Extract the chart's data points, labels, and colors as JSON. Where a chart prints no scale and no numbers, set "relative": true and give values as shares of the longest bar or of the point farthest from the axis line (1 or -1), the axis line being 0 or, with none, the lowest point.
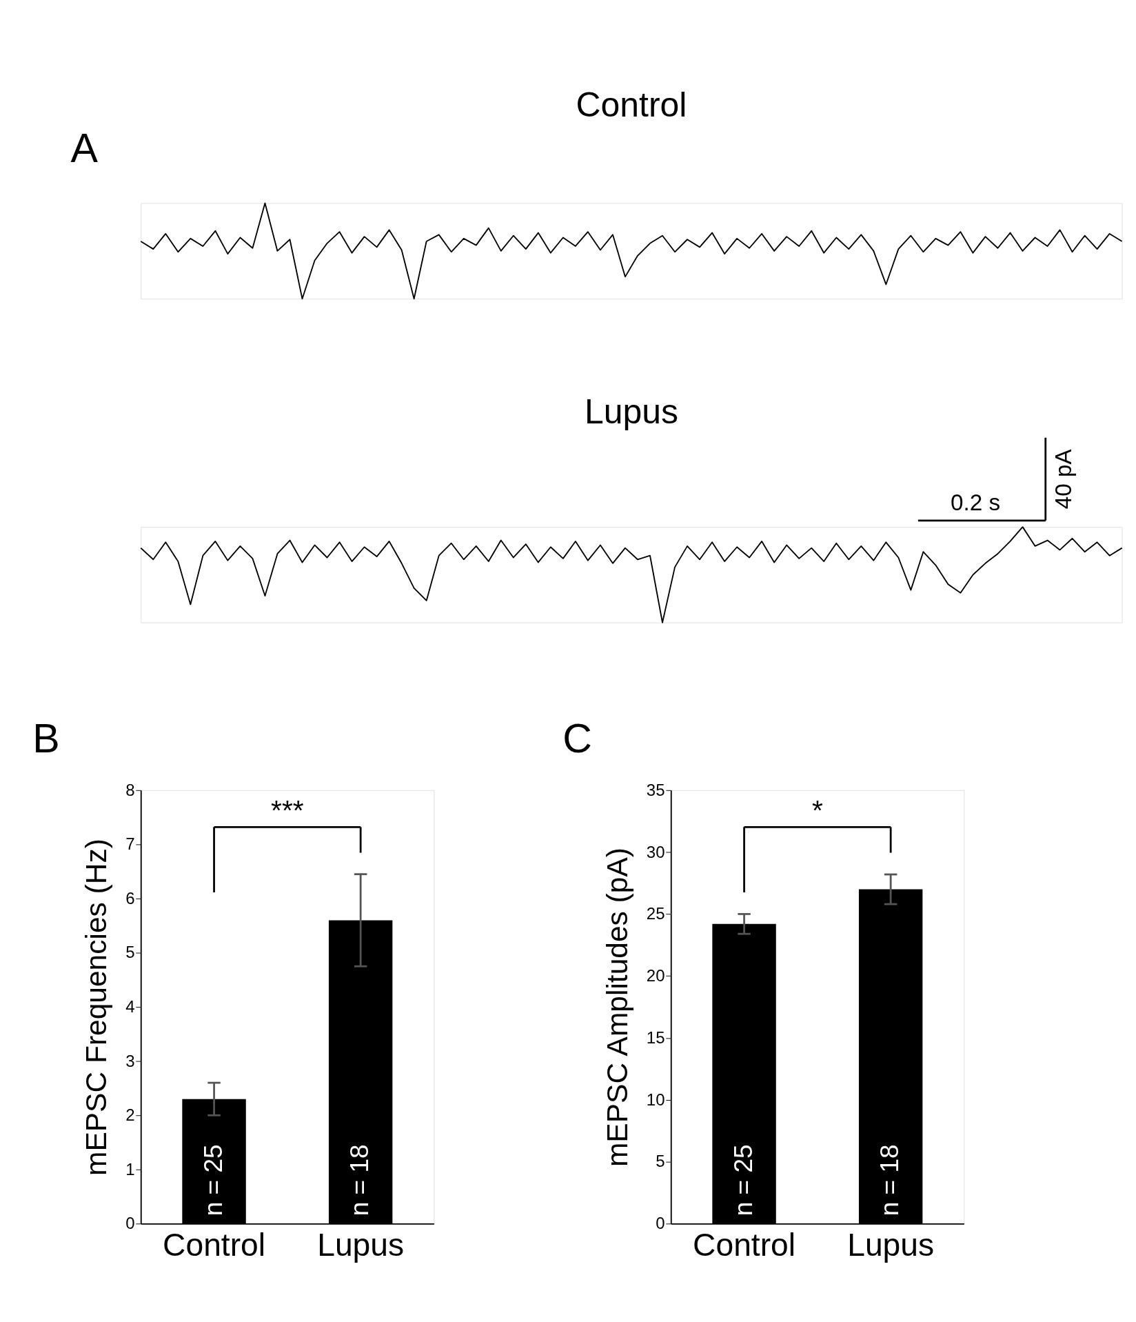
{
  "chart_data": [
    {
      "type": "line",
      "title": "Control",
      "relative": true,
      "annotations": [
        "A"
      ],
      "categories": [
        null,
        null,
        null,
        null,
        null,
        null,
        null,
        null,
        null,
        null,
        null,
        null,
        null,
        null,
        null,
        null,
        null,
        null,
        null,
        null,
        null,
        null,
        null,
        null,
        null,
        null,
        null,
        null,
        null,
        null,
        null,
        null,
        null,
        null,
        null,
        null,
        null,
        null,
        null,
        null,
        null,
        null,
        null,
        null,
        null,
        null,
        null,
        null,
        null,
        null,
        null,
        null,
        null,
        null,
        null,
        null,
        null,
        null,
        null,
        null,
        null,
        null,
        null,
        null,
        null,
        null,
        null,
        null,
        null,
        null,
        null,
        null,
        null,
        null,
        null,
        null,
        null,
        null,
        null,
        null
      ],
      "series": [
        {
          "color": "#000000",
          "values": [
            0.6,
            0.52,
            0.68,
            0.49,
            0.63,
            0.55,
            0.71,
            0.47,
            0.64,
            0.53,
            1.0,
            0.5,
            0.62,
            0.0,
            0.4,
            0.58,
            0.7,
            0.48,
            0.65,
            0.54,
            0.72,
            0.51,
            0.0,
            0.6,
            0.67,
            0.49,
            0.63,
            0.56,
            0.74,
            0.5,
            0.66,
            0.52,
            0.69,
            0.48,
            0.64,
            0.55,
            0.7,
            0.51,
            0.67,
            0.23,
            0.45,
            0.58,
            0.66,
            0.49,
            0.62,
            0.54,
            0.69,
            0.47,
            0.63,
            0.53,
            0.68,
            0.5,
            0.65,
            0.55,
            0.71,
            0.48,
            0.64,
            0.52,
            0.67,
            0.5,
            0.15,
            0.52,
            0.66,
            0.49,
            0.63,
            0.56,
            0.7,
            0.48,
            0.65,
            0.53,
            0.69,
            0.5,
            0.64,
            0.55,
            0.72,
            0.49,
            0.66,
            0.52,
            0.68,
            0.6
          ]
        }
      ]
    },
    {
      "type": "line",
      "title": "Lupus",
      "relative": true,
      "annotations": [
        "0.2 s",
        "40 pA"
      ],
      "categories": [
        null,
        null,
        null,
        null,
        null,
        null,
        null,
        null,
        null,
        null,
        null,
        null,
        null,
        null,
        null,
        null,
        null,
        null,
        null,
        null,
        null,
        null,
        null,
        null,
        null,
        null,
        null,
        null,
        null,
        null,
        null,
        null,
        null,
        null,
        null,
        null,
        null,
        null,
        null,
        null,
        null,
        null,
        null,
        null,
        null,
        null,
        null,
        null,
        null,
        null,
        null,
        null,
        null,
        null,
        null,
        null,
        null,
        null,
        null,
        null,
        null,
        null,
        null,
        null,
        null,
        null,
        null,
        null,
        null,
        null,
        null,
        null,
        null,
        null,
        null,
        null,
        null,
        null,
        null,
        null
      ],
      "series": [
        {
          "color": "#000000",
          "values": [
            0.78,
            0.66,
            0.84,
            0.64,
            0.19,
            0.7,
            0.85,
            0.65,
            0.8,
            0.67,
            0.28,
            0.72,
            0.86,
            0.63,
            0.81,
            0.68,
            0.84,
            0.64,
            0.79,
            0.69,
            0.85,
            0.62,
            0.36,
            0.23,
            0.7,
            0.83,
            0.66,
            0.8,
            0.64,
            0.86,
            0.68,
            0.82,
            0.63,
            0.79,
            0.67,
            0.85,
            0.65,
            0.81,
            0.62,
            0.78,
            0.66,
            0.7,
            0.0,
            0.58,
            0.8,
            0.66,
            0.84,
            0.64,
            0.79,
            0.68,
            0.85,
            0.63,
            0.81,
            0.67,
            0.78,
            0.64,
            0.83,
            0.66,
            0.8,
            0.65,
            0.84,
            0.68,
            0.34,
            0.74,
            0.6,
            0.4,
            0.31,
            0.5,
            0.62,
            0.72,
            0.85,
            1.0,
            0.8,
            0.86,
            0.76,
            0.88,
            0.74,
            0.84,
            0.7,
            0.78
          ]
        }
      ]
    },
    {
      "type": "bar",
      "ylabel": "mEPSC Frequencies (Hz)",
      "categories": [
        "Control",
        "Lupus"
      ],
      "ylim": [
        0,
        8
      ],
      "yticks": [
        0,
        1,
        2,
        3,
        4,
        5,
        6,
        7,
        8
      ],
      "series": [
        {
          "color": "#000000",
          "values": [
            2.3,
            5.6
          ],
          "errors": [
            0.3,
            0.85
          ]
        }
      ],
      "annotations": [
        "B",
        "***",
        "n = 25",
        "n = 18"
      ]
    },
    {
      "type": "bar",
      "ylabel": "mEPSC Amplitudes (pA)",
      "categories": [
        "Control",
        "Lupus"
      ],
      "ylim": [
        0,
        35
      ],
      "yticks": [
        0,
        5,
        10,
        15,
        20,
        25,
        30,
        35
      ],
      "series": [
        {
          "color": "#000000",
          "values": [
            24.2,
            27.0
          ],
          "errors": [
            0.8,
            1.2
          ]
        }
      ],
      "annotations": [
        "C",
        "*",
        "n = 25",
        "n = 18"
      ]
    }
  ]
}
